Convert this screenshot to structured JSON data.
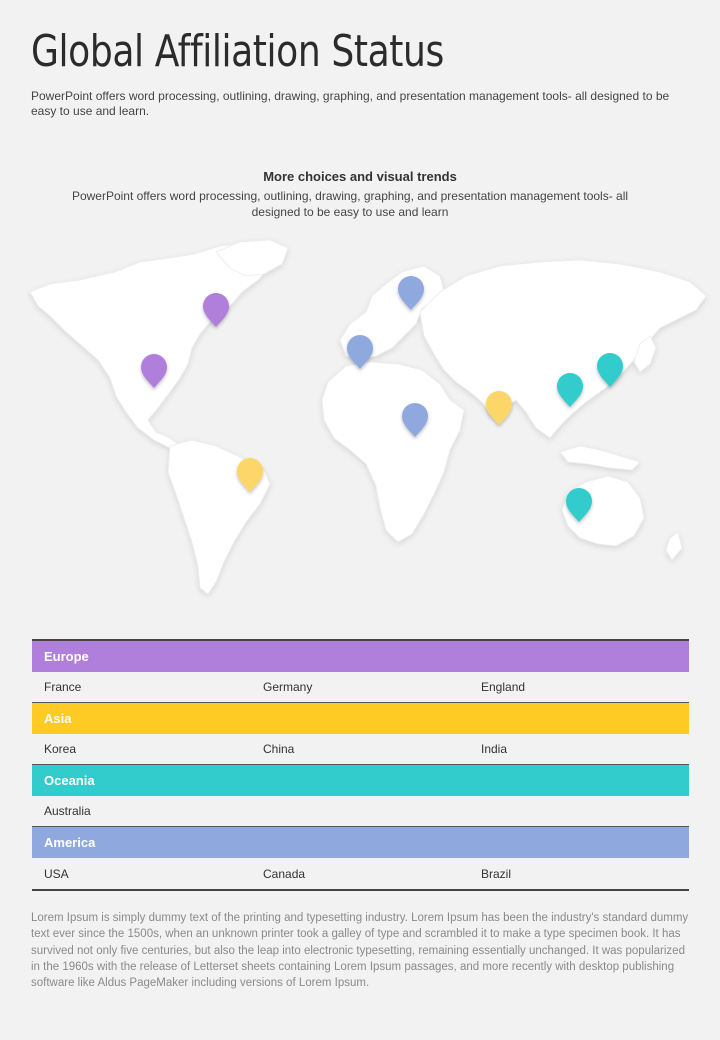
{
  "title": "Global Affiliation Status",
  "intro": "PowerPoint offers word processing, outlining, drawing, graphing, and presentation management tools- all designed to be easy to use and learn.",
  "section": {
    "heading": "More choices and visual trends",
    "subtext": "PowerPoint offers word processing, outlining, drawing, graphing, and presentation management tools- all designed to be easy to use and learn"
  },
  "colors": {
    "europe": "#b07fdc",
    "asia": "#fdcb24",
    "oceania": "#33cccc",
    "america": "#8fa9df"
  },
  "regions": [
    {
      "name": "Europe",
      "color": "#b07fdc",
      "countries": [
        "France",
        "Germany",
        "England"
      ]
    },
    {
      "name": "Asia",
      "color": "#fdcb24",
      "countries": [
        "Korea",
        "China",
        "India"
      ]
    },
    {
      "name": "Oceania",
      "color": "#33cccc",
      "countries": [
        "Australia",
        "",
        ""
      ]
    },
    {
      "name": "America",
      "color": "#8fa9df",
      "countries": [
        "USA",
        "Canada",
        "Brazil"
      ]
    }
  ],
  "footer": "Lorem Ipsum is simply dummy text of the printing and typesetting industry. Lorem Ipsum has been the industry's standard dummy text ever since the 1500s, when an unknown printer took a galley of type and scrambled it to make a type specimen book. It has survived not only five centuries, but also the leap into electronic typesetting, remaining essentially unchanged. It was popularized in the 1960s with the release of Letterset sheets containing Lorem Ipsum passages, and more recently with desktop publishing software like Aldus PageMaker including versions of Lorem Ipsum.",
  "map_pins": [
    {
      "icon": "map-pin-icon",
      "color": "#b07fdc"
    },
    {
      "icon": "map-pin-icon",
      "color": "#b07fdc"
    },
    {
      "icon": "map-pin-icon",
      "color": "#fdd66b"
    },
    {
      "icon": "map-pin-icon",
      "color": "#8fa9df"
    },
    {
      "icon": "map-pin-icon",
      "color": "#8fa9df"
    },
    {
      "icon": "map-pin-icon",
      "color": "#8fa9df"
    },
    {
      "icon": "map-pin-icon",
      "color": "#fdd66b"
    },
    {
      "icon": "map-pin-icon",
      "color": "#33cccc"
    },
    {
      "icon": "map-pin-icon",
      "color": "#33cccc"
    },
    {
      "icon": "map-pin-icon",
      "color": "#33cccc"
    }
  ]
}
